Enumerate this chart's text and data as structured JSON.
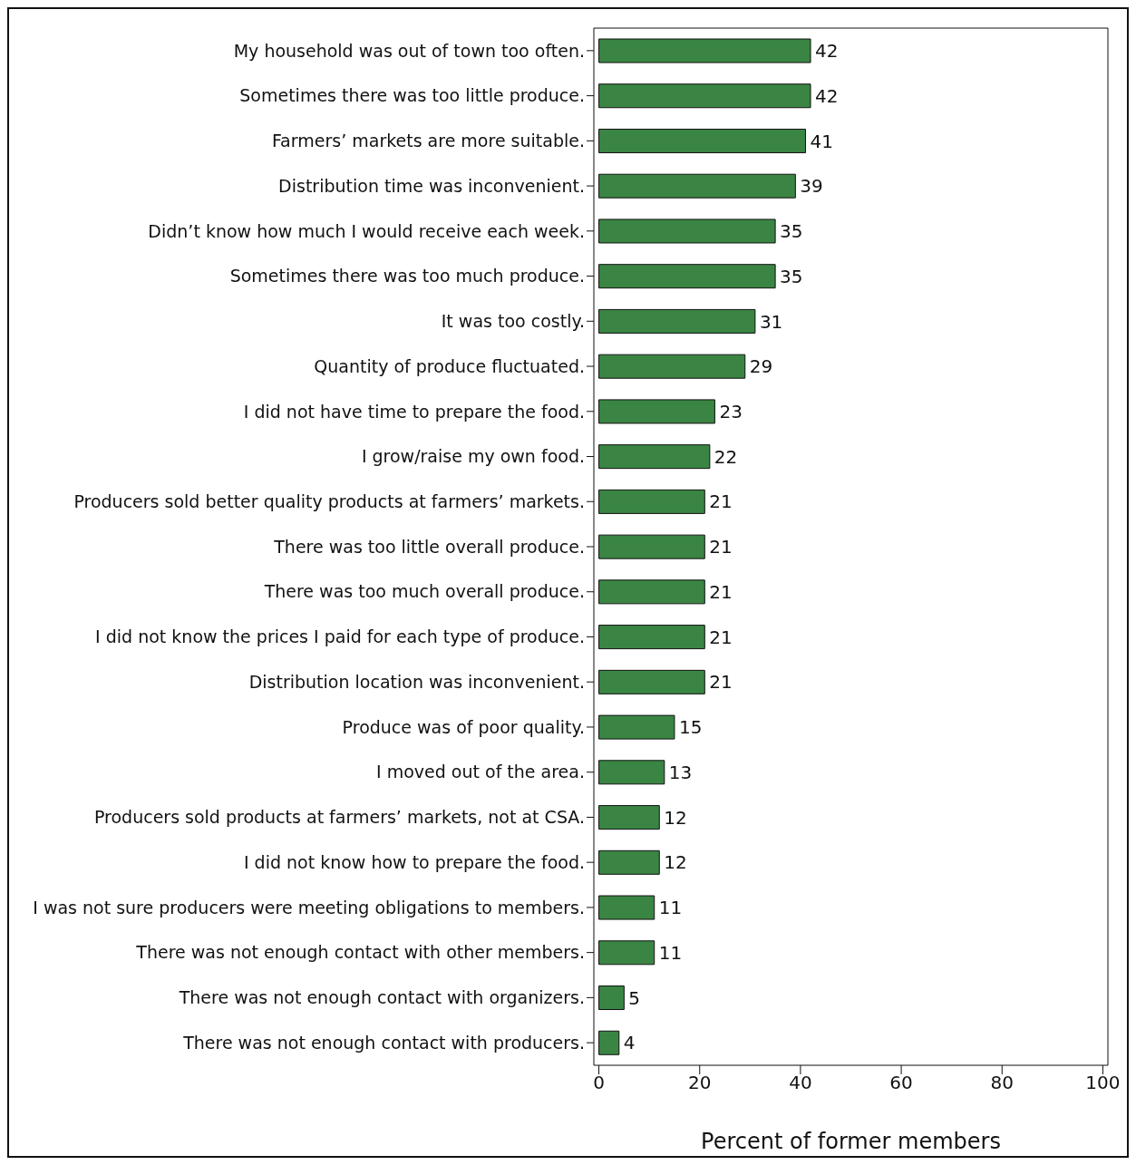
{
  "chart_data": {
    "type": "bar",
    "orientation": "horizontal",
    "xlabel": "Percent of former members",
    "categories": [
      "My household was out of town too often.",
      "Sometimes there was too little produce.",
      "Farmers’ markets are more suitable.",
      "Distribution time was inconvenient.",
      "Didn’t know how much I would receive each week.",
      "Sometimes there was too much produce.",
      "It was too costly.",
      "Quantity of produce fluctuated.",
      "I did not have time to prepare the food.",
      "I grow/raise my own food.",
      "Producers sold better quality products at farmers’ markets.",
      "There was too little overall produce.",
      "There was too much overall produce.",
      "I did not know the prices I paid for each type of produce.",
      "Distribution location was inconvenient.",
      "Produce was of poor quality.",
      "I moved out of the area.",
      "Producers sold products at farmers’ markets, not at CSA.",
      "I did not know how to prepare the food.",
      "I was not sure producers were meeting obligations to members.",
      "There was not enough contact with other members.",
      "There was not enough contact with organizers.",
      "There was not enough contact with producers."
    ],
    "values": [
      42,
      42,
      41,
      39,
      35,
      35,
      31,
      29,
      23,
      22,
      21,
      21,
      21,
      21,
      21,
      15,
      13,
      12,
      12,
      11,
      11,
      5,
      4
    ],
    "color": "#3a8543",
    "xlim": [
      -1,
      101
    ],
    "xticks": [
      0,
      20,
      40,
      60,
      80,
      100
    ],
    "data_labels": true
  }
}
